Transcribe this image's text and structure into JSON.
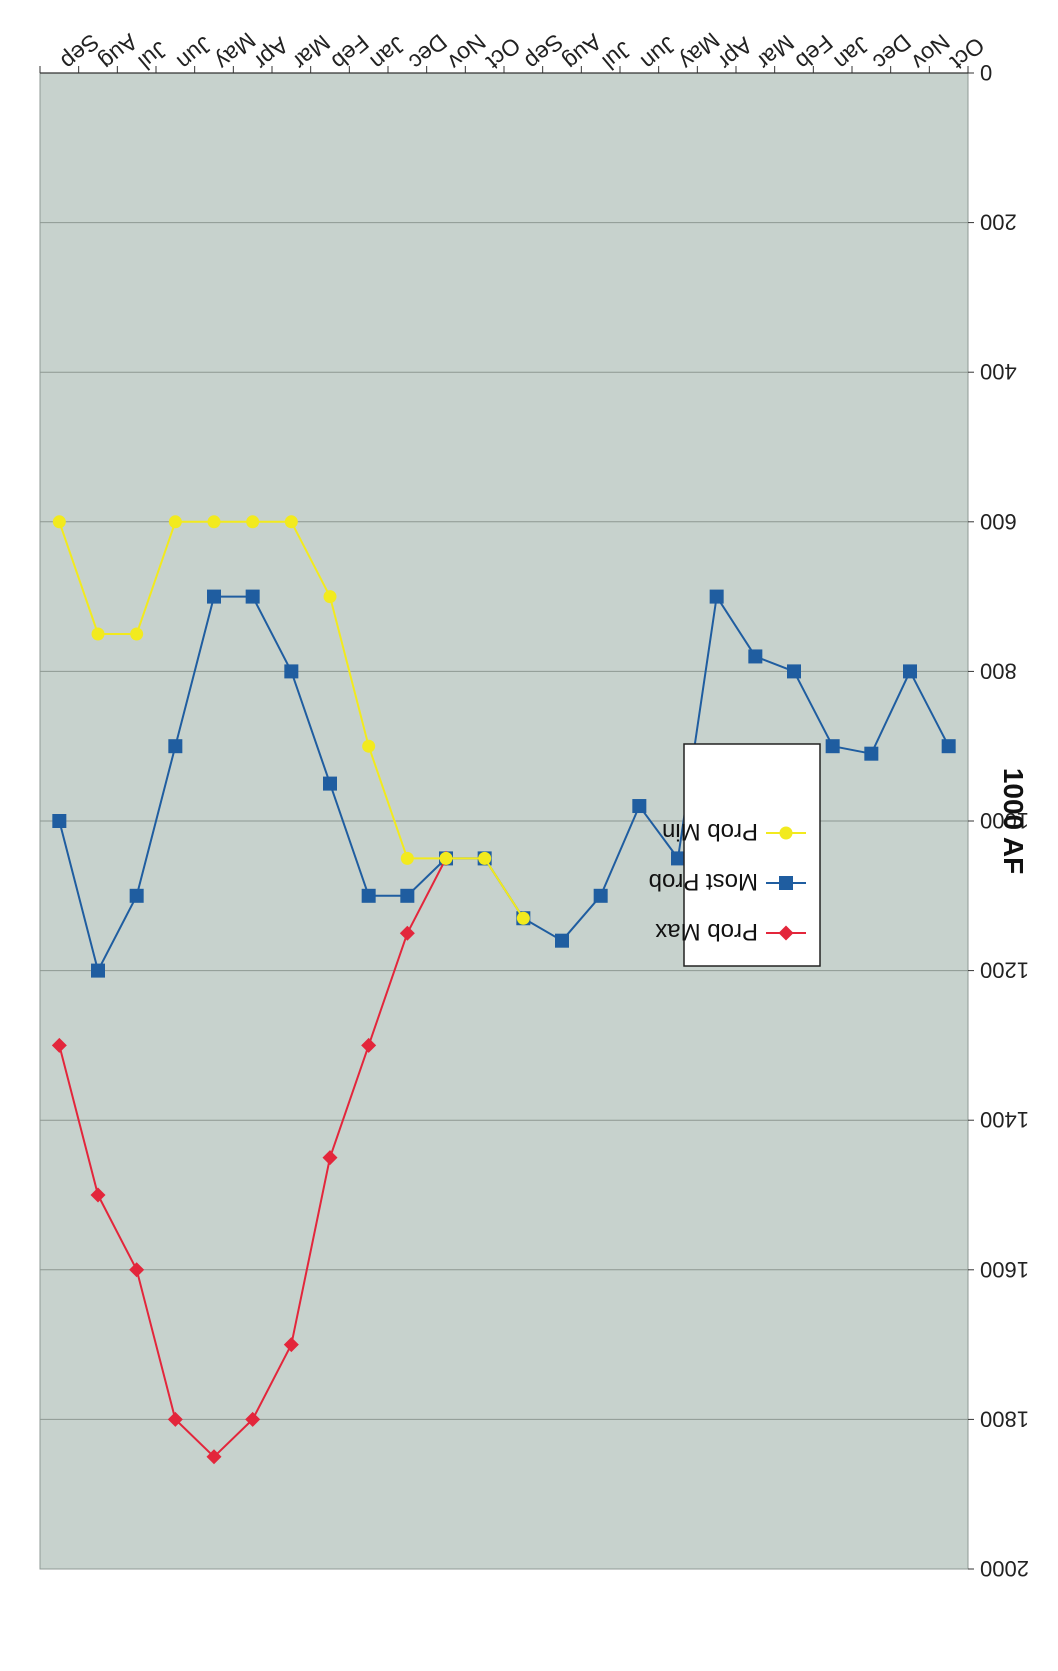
{
  "chart_data": {
    "type": "line",
    "title": "",
    "ylabel": "1000 AF",
    "xlabel": "",
    "ylim": [
      0,
      2000
    ],
    "yticks": [
      0,
      200,
      400,
      600,
      800,
      1000,
      1200,
      1400,
      1600,
      1800,
      2000
    ],
    "grid": true,
    "legend_position": "center-right",
    "orientation": "rotated-180",
    "categories": [
      "Oct",
      "Nov",
      "Dec",
      "Jan",
      "Feb",
      "Mar",
      "Apr",
      "May",
      "Jun",
      "Jul",
      "Aug",
      "Sep",
      "Oct",
      "Nov",
      "Dec",
      "Jan",
      "Feb",
      "Mar",
      "Apr",
      "May",
      "Jun",
      "Jul",
      "Aug",
      "Sep"
    ],
    "series": [
      {
        "name": "Prob Max",
        "color": "#e3263b",
        "marker": "diamond",
        "values": [
          null,
          null,
          null,
          null,
          null,
          null,
          null,
          null,
          null,
          null,
          null,
          null,
          null,
          1050,
          1150,
          1300,
          1450,
          1700,
          1800,
          1850,
          1800,
          1600,
          1500,
          1300
        ]
      },
      {
        "name": "Most Prob",
        "color": "#1f5da0",
        "marker": "square",
        "values": [
          900,
          800,
          910,
          900,
          800,
          780,
          700,
          1050,
          980,
          1100,
          1160,
          1130,
          1050,
          1050,
          1100,
          1100,
          950,
          800,
          700,
          700,
          900,
          1100,
          1200,
          1000
        ]
      },
      {
        "name": "Prob Min",
        "color": "#f2ea1e",
        "marker": "circle",
        "values": [
          null,
          null,
          null,
          null,
          null,
          null,
          null,
          null,
          null,
          null,
          null,
          1130,
          1050,
          1050,
          1050,
          900,
          700,
          600,
          600,
          600,
          600,
          750,
          750,
          600
        ]
      }
    ]
  }
}
